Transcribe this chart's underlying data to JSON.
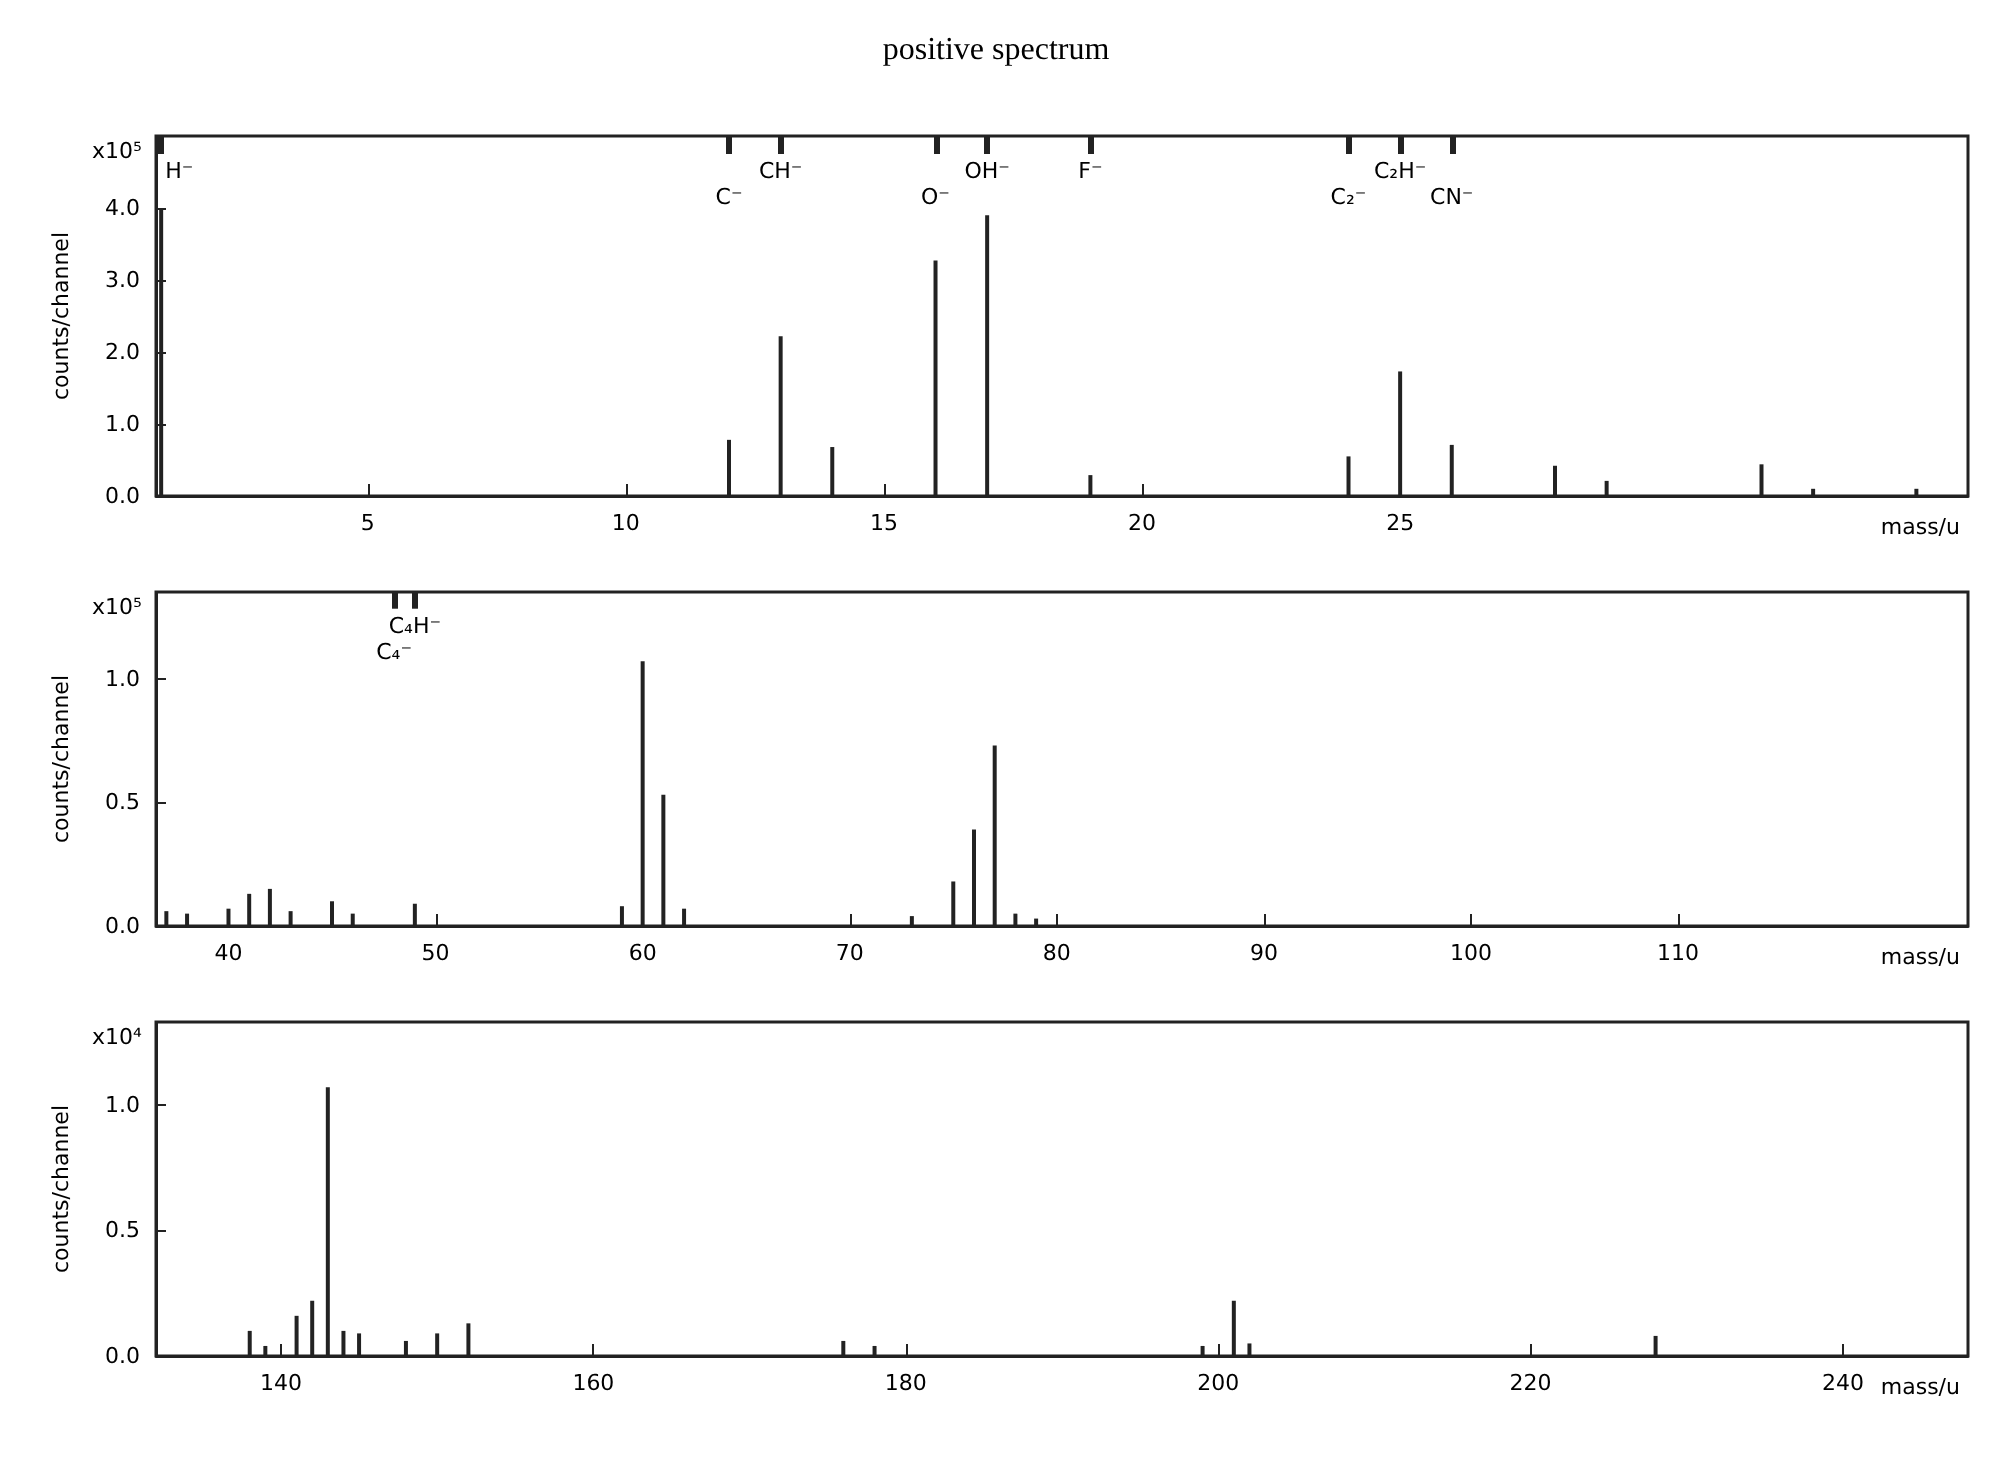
{
  "chart_data": [
    {
      "type": "bar",
      "title": "positive spectrum",
      "xlabel": "mass/u",
      "ylabel": "counts/channel",
      "color": "#222222",
      "x": [
        1,
        12,
        13,
        14,
        16,
        17,
        19,
        24,
        25,
        26,
        28,
        29,
        32,
        33,
        35
      ],
      "values": [
        4.0,
        0.78,
        2.22,
        0.68,
        3.27,
        3.9,
        0.29,
        0.55,
        1.73,
        0.71,
        0.42,
        0.21,
        0.44,
        0.1,
        0.1
      ],
      "xlim": [
        0.9,
        36
      ],
      "xticks": [
        5,
        10,
        15,
        20,
        25
      ],
      "ylim": [
        0,
        5
      ],
      "yticks": [
        {
          "value": 0,
          "label": "0.0"
        },
        {
          "value": 1,
          "label": "1.0"
        },
        {
          "value": 2,
          "label": "2.0"
        },
        {
          "value": 3,
          "label": "3.0"
        },
        {
          "value": 4,
          "label": "4.0"
        }
      ],
      "annotations": [
        "x10⁵"
      ],
      "ref_lines": [
        {
          "axis": "x",
          "value": 1,
          "label": "H⁻"
        },
        {
          "axis": "x",
          "value": 12,
          "label": "C⁻"
        },
        {
          "axis": "x",
          "value": 13,
          "label": "CH⁻"
        },
        {
          "axis": "x",
          "value": 16,
          "label": "O⁻"
        },
        {
          "axis": "x",
          "value": 17,
          "label": "OH⁻"
        },
        {
          "axis": "x",
          "value": 19,
          "label": "F⁻"
        },
        {
          "axis": "x",
          "value": 24,
          "label": "C₂⁻"
        },
        {
          "axis": "x",
          "value": 25,
          "label": "C₂H⁻"
        },
        {
          "axis": "x",
          "value": 26,
          "label": "CN⁻"
        }
      ]
    },
    {
      "type": "bar",
      "xlabel": "mass/u",
      "ylabel": "counts/channel",
      "color": "#222222",
      "x": [
        37,
        38,
        40,
        41,
        42,
        43,
        45,
        46,
        49,
        59,
        60,
        61,
        62,
        73,
        75,
        76,
        77,
        78,
        79
      ],
      "values": [
        0.06,
        0.05,
        0.07,
        0.13,
        0.15,
        0.06,
        0.1,
        0.05,
        0.09,
        0.08,
        1.07,
        0.53,
        0.07,
        0.04,
        0.18,
        0.39,
        0.73,
        0.05,
        0.03
      ],
      "xlim": [
        36.5,
        124
      ],
      "xticks": [
        40,
        50,
        60,
        70,
        80,
        90,
        100,
        110
      ],
      "ylim": [
        0,
        1.35
      ],
      "yticks": [
        {
          "value": 0,
          "label": "0.0"
        },
        0.5,
        {
          "value": 1,
          "label": "1.0"
        }
      ],
      "annotations": [
        "x10⁵"
      ],
      "ref_lines": [
        {
          "axis": "x",
          "value": 48,
          "label": "C₄⁻"
        },
        {
          "axis": "x",
          "value": 49,
          "label": "C₄H⁻"
        }
      ]
    },
    {
      "type": "bar",
      "xlabel": "mass/u",
      "ylabel": "counts/channel",
      "color": "#222222",
      "x": [
        138,
        139,
        141,
        142,
        143,
        144,
        145,
        148,
        150,
        152,
        176,
        178,
        199,
        201,
        202,
        228
      ],
      "values": [
        0.1,
        0.04,
        0.16,
        0.22,
        1.07,
        0.1,
        0.09,
        0.06,
        0.09,
        0.13,
        0.06,
        0.04,
        0.04,
        0.22,
        0.05,
        0.08
      ],
      "xlim": [
        132,
        248
      ],
      "xticks": [
        140,
        160,
        180,
        200,
        220,
        240
      ],
      "ylim": [
        0,
        1.33
      ],
      "yticks": [
        {
          "value": 0,
          "label": "0.0"
        },
        0.5,
        {
          "value": 1,
          "label": "1.0"
        }
      ],
      "annotations": [
        "x10⁴"
      ]
    }
  ]
}
